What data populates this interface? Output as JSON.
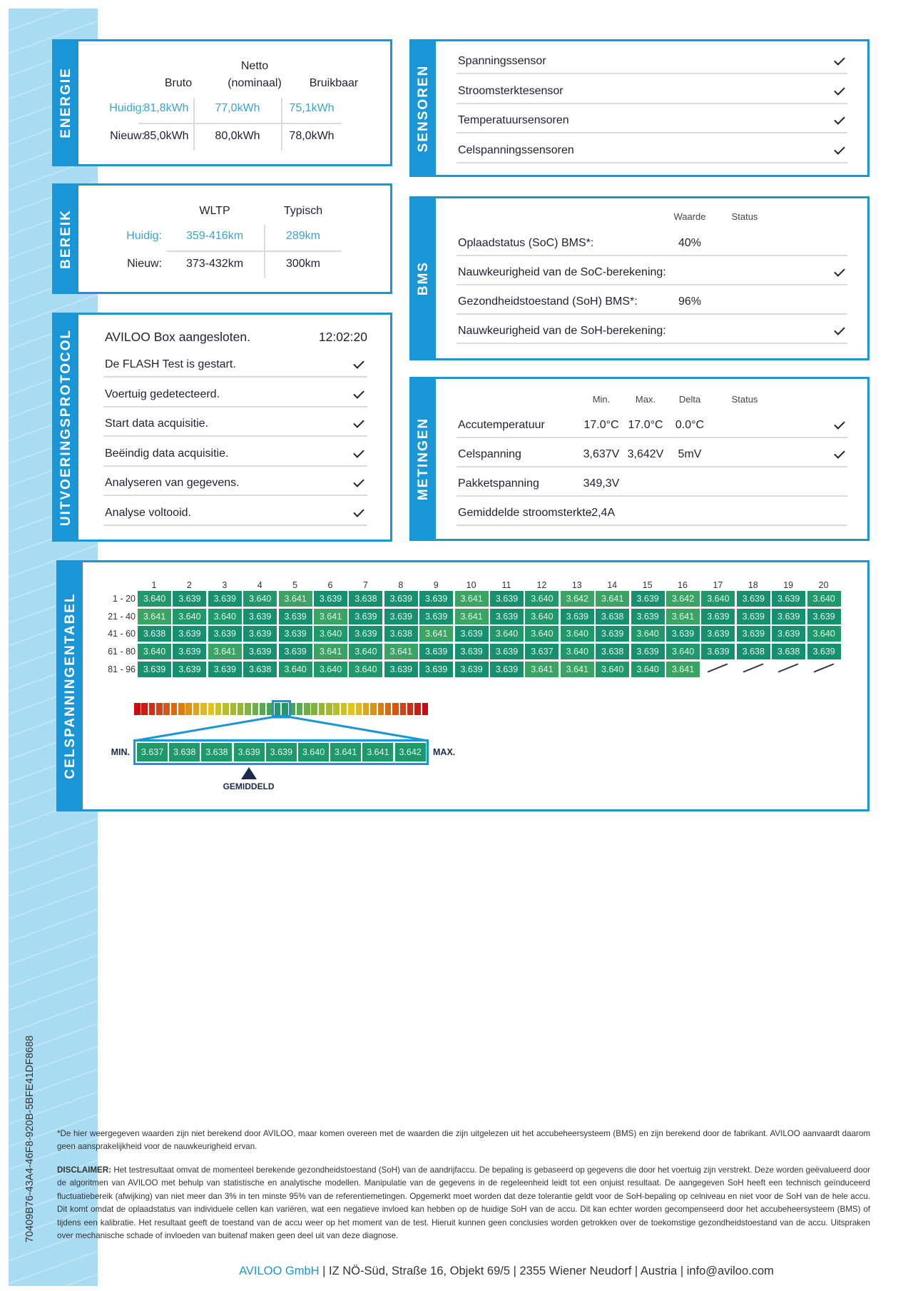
{
  "side_id": "70409B76-43A4-46F8-920B-5BFE41DF8688",
  "colors": {
    "accent": "#1a96d6",
    "stripe": "#a9dcf3",
    "current": "#3aa2d4",
    "cell_dark": "#16906f",
    "cell_mid": "#1f986b",
    "cell_light": "#3ba364"
  },
  "energie": {
    "title": "ENERGIE",
    "headers": [
      "Bruto",
      "Netto",
      "(nominaal)",
      "Bruikbaar"
    ],
    "rows": [
      {
        "label": "Huidig:",
        "values": [
          "81,8kWh",
          "77,0kWh",
          "75,1kWh"
        ]
      },
      {
        "label": "Nieuw:",
        "values": [
          "85,0kWh",
          "80,0kWh",
          "78,0kWh"
        ]
      }
    ]
  },
  "bereik": {
    "title": "BEREIK",
    "headers": [
      "WLTP",
      "Typisch"
    ],
    "rows": [
      {
        "label": "Huidig:",
        "values": [
          "359-416km",
          "289km"
        ]
      },
      {
        "label": "Nieuw:",
        "values": [
          "373-432km",
          "300km"
        ]
      }
    ]
  },
  "protocol": {
    "title": "UITVOERINGSPROTOCOL",
    "heading": "AVILOO Box aangesloten.",
    "time": "12:02:20",
    "steps": [
      "De FLASH Test is gestart.",
      "Voertuig gedetecteerd.",
      "Start data acquisitie.",
      "Beëindig data acquisitie.",
      "Analyseren van gegevens.",
      "Analyse voltooid."
    ],
    "status_icon": "check-icon"
  },
  "sensoren": {
    "title": "SENSOREN",
    "items": [
      "Spanningssensor",
      "Stroomsterktesensor",
      "Temperatuursensoren",
      "Celspanningssensoren"
    ],
    "status_icon": "check-icon"
  },
  "bms": {
    "title": "BMS",
    "headers": [
      "Waarde",
      "Status"
    ],
    "rows": [
      {
        "label": "Oplaadstatus (SoC) BMS*:",
        "value": "40%",
        "ok": false
      },
      {
        "label": "Nauwkeurigheid van de SoC-berekening:",
        "value": "",
        "ok": true
      },
      {
        "label": "Gezondheidstoestand (SoH) BMS*:",
        "value": "96%",
        "ok": false
      },
      {
        "label": "Nauwkeurigheid van de SoH-berekening:",
        "value": "",
        "ok": true
      }
    ]
  },
  "metingen": {
    "title": "METINGEN",
    "headers": [
      "Min.",
      "Max.",
      "Delta",
      "Status"
    ],
    "rows": [
      {
        "label": "Accutemperatuur",
        "min": "17.0°C",
        "max": "17.0°C",
        "delta": "0.0°C",
        "ok": true
      },
      {
        "label": "Celspanning",
        "min": "3,637V",
        "max": "3,642V",
        "delta": "5mV",
        "ok": true
      },
      {
        "label": "Pakketspanning",
        "min": "349,3V",
        "max": "",
        "delta": "",
        "ok": false
      },
      {
        "label": "Gemiddelde stroomsterkte",
        "min": "-2,4A",
        "max": "",
        "delta": "",
        "ok": false
      }
    ]
  },
  "celtabel": {
    "title": "CELSPANNINGENTABEL",
    "columns": [
      "1",
      "2",
      "3",
      "4",
      "5",
      "6",
      "7",
      "8",
      "9",
      "10",
      "11",
      "12",
      "13",
      "14",
      "15",
      "16",
      "17",
      "18",
      "19",
      "20"
    ],
    "rows": [
      {
        "label": "1 - 20",
        "values": [
          "3.640",
          "3.639",
          "3.639",
          "3.640",
          "3.641",
          "3.639",
          "3.638",
          "3.639",
          "3.639",
          "3.641",
          "3.639",
          "3.640",
          "3.642",
          "3.641",
          "3.639",
          "3.642",
          "3.640",
          "3.639",
          "3.639",
          "3.640"
        ]
      },
      {
        "label": "21 - 40",
        "values": [
          "3.641",
          "3.640",
          "3.640",
          "3.639",
          "3.639",
          "3.641",
          "3.639",
          "3.639",
          "3.639",
          "3.641",
          "3.639",
          "3.640",
          "3.639",
          "3.638",
          "3.639",
          "3.641",
          "3.639",
          "3.639",
          "3.639",
          "3.639"
        ]
      },
      {
        "label": "41 - 60",
        "values": [
          "3.638",
          "3.639",
          "3.639",
          "3.639",
          "3.639",
          "3.640",
          "3.639",
          "3.638",
          "3.641",
          "3.639",
          "3.640",
          "3.640",
          "3.640",
          "3.639",
          "3.640",
          "3.639",
          "3.639",
          "3.639",
          "3.639",
          "3.640"
        ]
      },
      {
        "label": "61 - 80",
        "values": [
          "3.640",
          "3.639",
          "3.641",
          "3.639",
          "3.639",
          "3.641",
          "3.640",
          "3.641",
          "3.639",
          "3.639",
          "3.639",
          "3.637",
          "3.640",
          "3.638",
          "3.639",
          "3.640",
          "3.639",
          "3.638",
          "3.638",
          "3.639"
        ]
      },
      {
        "label": "81 - 96",
        "values": [
          "3.639",
          "3.639",
          "3.639",
          "3.638",
          "3.640",
          "3.640",
          "3.640",
          "3.639",
          "3.639",
          "3.639",
          "3.639",
          "3.641",
          "3.641",
          "3.640",
          "3.640",
          "3.641",
          null,
          null,
          null,
          null
        ]
      }
    ],
    "distribution": [
      "3.637",
      "3.638",
      "3.638",
      "3.639",
      "3.639",
      "3.640",
      "3.641",
      "3.641",
      "3.642"
    ],
    "min_label": "MIN.",
    "max_label": "MAX.",
    "avg_label": "GEMIDDELD",
    "avg_index": 3
  },
  "footer": {
    "note": "*De hier weergegeven waarden zijn niet berekend door AVILOO, maar komen overeen met de waarden die zijn uitgelezen uit het accubeheersysteem (BMS) en zijn berekend door de fabrikant. AVILOO aanvaardt daarom geen aansprakelijkheid voor de nauwkeurigheid ervan.",
    "disclaimer_label": "DISCLAIMER:",
    "disclaimer": " Het testresultaat omvat de momenteel berekende gezondheidstoestand (SoH) van de aandrijfaccu. De bepaling is gebaseerd op gegevens die door het voertuig zijn verstrekt. Deze worden geëvalueerd door de algoritmen van AVILOO met behulp van statistische en analytische modellen. Manipulatie van de gegevens in de regeleenheid leidt tot een onjuist resultaat. De aangegeven SoH heeft een technisch geïnduceerd fluctuatiebereik (afwijking) van niet meer dan 3% in ten minste 95% van de referentiemetingen. Opgemerkt moet worden dat deze tolerantie geldt voor de SoH-bepaling op celniveau en niet voor de SoH van de hele accu. Dit komt omdat de oplaadstatus van individuele cellen kan variëren, wat een negatieve invloed kan hebben op de huidige SoH van de accu. Dit kan echter worden gecompenseerd door het accubeheersysteem (BMS) of tijdens een kalibratie. Het resultaat geeft de toestand van de accu weer op het moment van de test. Hieruit kunnen geen conclusies worden getrokken over de toekomstige gezondheidstoestand van de accu. Uitspraken over mechanische schade of invloeden van buitenaf maken geen deel uit van deze diagnose.",
    "company": "AVILOO GmbH",
    "address": " | IZ NÖ-Süd, Straße 16, Objekt 69/5 | 2355 Wiener Neudorf | Austria | info@aviloo.com"
  }
}
